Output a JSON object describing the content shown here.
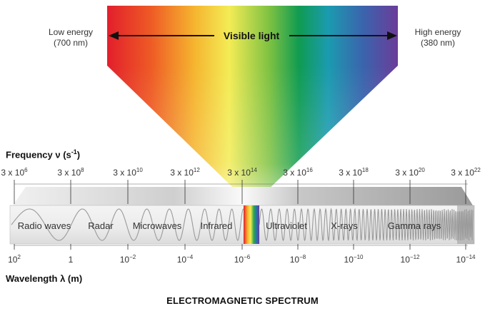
{
  "visible": {
    "label": "Visible light",
    "low": {
      "title": "Low energy",
      "sub": "(700 nm)"
    },
    "high": {
      "title": "High energy",
      "sub": "(380 nm)"
    }
  },
  "frequency": {
    "title": "Frequency",
    "symbol": "ν (s",
    "unit_sup": "-1",
    "close": ")",
    "ticks": [
      {
        "base": "3 x 10",
        "exp": "6"
      },
      {
        "base": "3 x 10",
        "exp": "8"
      },
      {
        "base": "3 x 10",
        "exp": "10"
      },
      {
        "base": "3 x 10",
        "exp": "12"
      },
      {
        "base": "3 x 10",
        "exp": "14"
      },
      {
        "base": "3 x 10",
        "exp": "16"
      },
      {
        "base": "3 x 10",
        "exp": "18"
      },
      {
        "base": "3 x 10",
        "exp": "20"
      },
      {
        "base": "3 x 10",
        "exp": "22"
      }
    ]
  },
  "wavelength": {
    "title": "Wavelength λ (m)",
    "ticks": [
      {
        "base": "10",
        "exp": "2"
      },
      {
        "base": "1",
        "exp": ""
      },
      {
        "base": "10",
        "exp": "−2"
      },
      {
        "base": "10",
        "exp": "−4"
      },
      {
        "base": "10",
        "exp": "−6"
      },
      {
        "base": "10",
        "exp": "−8"
      },
      {
        "base": "10",
        "exp": "−10"
      },
      {
        "base": "10",
        "exp": "−12"
      },
      {
        "base": "10",
        "exp": "−14"
      }
    ]
  },
  "bands": [
    "Radio waves",
    "Radar",
    "Microwaves",
    "Infrared",
    "Ultraviolet",
    "X-rays",
    "Gamma rays"
  ],
  "caption": "ELECTROMAGNETIC SPECTRUM",
  "colors": {
    "spectrum": [
      "#e8202a",
      "#f07a22",
      "#f6e94a",
      "#6abf45",
      "#0f9a5a",
      "#1f6fb5",
      "#6b3d98"
    ],
    "bar_top": "#d8d8d8",
    "bar_face": "#e4e4e4",
    "wave": "#999999"
  }
}
